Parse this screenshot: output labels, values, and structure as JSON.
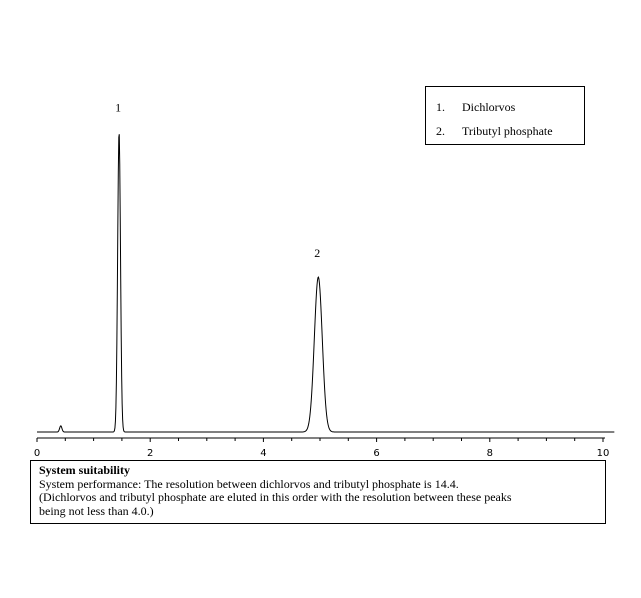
{
  "legend": {
    "items": [
      {
        "number": "1.",
        "label": "Dichlorvos"
      },
      {
        "number": "2.",
        "label": "Tributyl phosphate"
      }
    ]
  },
  "system_suitability": {
    "title": "System suitability",
    "lines": [
      "System performance: The resolution between dichlorvos and tributyl phosphate is 14.4.",
      "(Dichlorvos and tributyl phosphate are eluted in this order with the resolution between these peaks",
      "being not less than 4.0.)"
    ]
  },
  "chart_data": {
    "type": "line",
    "title": "",
    "xlabel": "",
    "ylabel": "",
    "xlim": [
      0,
      10
    ],
    "ylim": [
      0,
      100
    ],
    "x_ticks": [
      "0",
      "2",
      "4",
      "6",
      "8",
      "10"
    ],
    "grid": false,
    "line_color": "#000000",
    "peaks": [
      {
        "label": "1",
        "retention_time": 1.45,
        "height": 97,
        "width": 0.025
      },
      {
        "label": "2",
        "retention_time": 4.97,
        "height": 50,
        "width": 0.07
      }
    ],
    "minor_peak": {
      "retention_time": 0.42,
      "height": 2,
      "width": 0.02
    },
    "baseline": 0
  }
}
